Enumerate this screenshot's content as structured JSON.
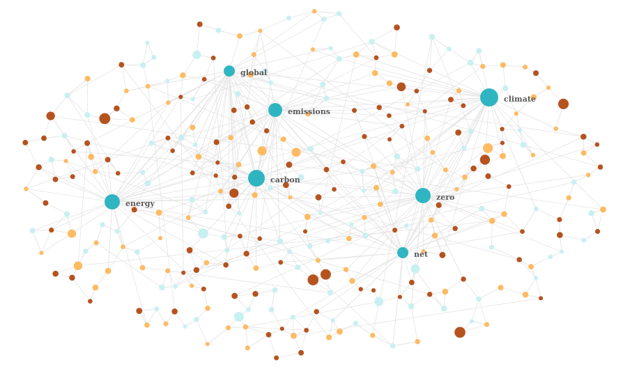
{
  "nodes": [
    {
      "label": "global"
    },
    {
      "label": "emissions"
    },
    {
      "label": "climate"
    },
    {
      "label": "carbon"
    },
    {
      "label": "energy"
    },
    {
      "label": "zero"
    },
    {
      "label": "net"
    }
  ]
}
